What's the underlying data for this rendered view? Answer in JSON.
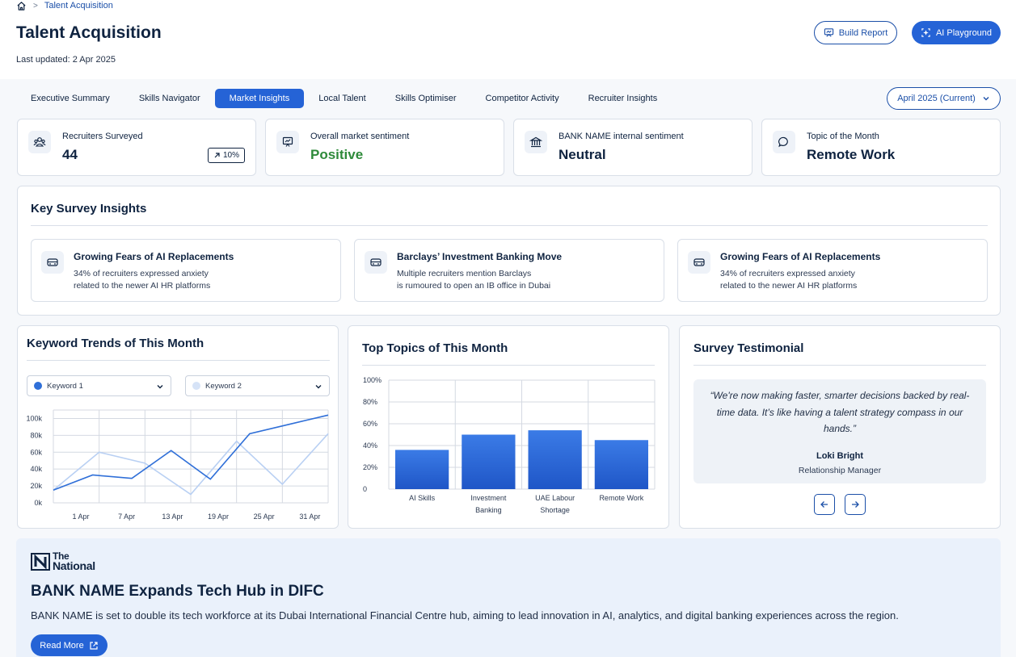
{
  "breadcrumb": {
    "current": "Talent Acquisition"
  },
  "header": {
    "title": "Talent Acquisition",
    "last_updated": "Last updated: 2 Apr 2025",
    "build_report_label": "Build Report",
    "ai_playground_label": "AI Playground"
  },
  "tabs": [
    {
      "label": "Executive Summary"
    },
    {
      "label": "Skills Navigator"
    },
    {
      "label": "Market Insights"
    },
    {
      "label": "Local Talent"
    },
    {
      "label": "Skills Optimiser"
    },
    {
      "label": "Competitor Activity"
    },
    {
      "label": "Recruiter Insights"
    }
  ],
  "active_tab": "Market Insights",
  "month_select": {
    "value": "April 2025 (Current)"
  },
  "stats": [
    {
      "label": "Recruiters Surveyed",
      "value": "44",
      "badge": "10%",
      "icon": "users-icon"
    },
    {
      "label": "Overall market sentiment",
      "value": "Positive",
      "icon": "presentation-icon"
    },
    {
      "label": "BANK NAME internal sentiment",
      "value": "Neutral",
      "icon": "bank-icon"
    },
    {
      "label": "Topic of the Month",
      "value": "Remote Work",
      "icon": "chat-bubble-icon"
    }
  ],
  "key_insights": {
    "title": "Key Survey Insights",
    "items": [
      {
        "title": "Growing Fears of AI Replacements",
        "line1": "34% of recruiters expressed anxiety",
        "line2": "related to the newer AI HR platforms"
      },
      {
        "title": "Barclays’ Investment Banking Move",
        "line1": "Multiple recruiters mention Barclays",
        "line2": "is rumoured to open an IB office in Dubai"
      },
      {
        "title": "Growing Fears of AI Replacements",
        "line1": "34% of recruiters expressed anxiety",
        "line2": "related to the newer AI HR platforms"
      }
    ]
  },
  "keyword_trends": {
    "title": "Keyword Trends of This Month",
    "select1": "Keyword 1",
    "select2": "Keyword 2"
  },
  "top_topics": {
    "title": "Top Topics of This Month"
  },
  "testimonial": {
    "title": "Survey Testimonial",
    "quote": "“We're now making faster, smarter decisions backed by real-time data. It’s like having a talent strategy compass in our hands.”",
    "author": "Loki Bright",
    "role": "Relationship Manager"
  },
  "news": {
    "source_line1": "The",
    "source_line2": "National",
    "headline": "BANK NAME Expands Tech Hub in DIFC",
    "body": "BANK NAME is set to double its tech workforce at its Dubai International Financial Centre hub, aiming to lead innovation in AI, analytics, and digital banking experiences across the region.",
    "read_more_label": "Read More"
  },
  "colors": {
    "accent": "#2563d6",
    "dark": "#0f2340",
    "positive": "#2e8a3a",
    "series2": "#b9d0f3"
  },
  "chart_data": [
    {
      "type": "line",
      "x_ticks": [
        "1 Apr",
        "7 Apr",
        "13 Apr",
        "19 Apr",
        "25 Apr",
        "31 Apr"
      ],
      "y_ticks": [
        "0k",
        "20k",
        "40k",
        "60k",
        "80k",
        "100k"
      ],
      "ylim": [
        0,
        110000
      ],
      "series": [
        {
          "name": "Keyword 1",
          "color": "#2f6fd8",
          "values": [
            15000,
            33000,
            29000,
            62000,
            28000,
            82000,
            93000,
            104000
          ]
        },
        {
          "name": "Keyword 2",
          "color": "#b9d0f3",
          "values": [
            15000,
            60000,
            47000,
            10000,
            73000,
            22000,
            82000
          ]
        }
      ]
    },
    {
      "type": "bar",
      "categories": [
        [
          "AI Skills"
        ],
        [
          "Investment",
          "Banking"
        ],
        [
          "UAE Labour",
          "Shortage"
        ],
        [
          "Remote Work"
        ]
      ],
      "values": [
        36,
        50,
        54,
        45
      ],
      "y_ticks": [
        "0",
        "20%",
        "40%",
        "60%",
        "80%",
        "100%"
      ],
      "ylim": [
        0,
        100
      ]
    }
  ]
}
